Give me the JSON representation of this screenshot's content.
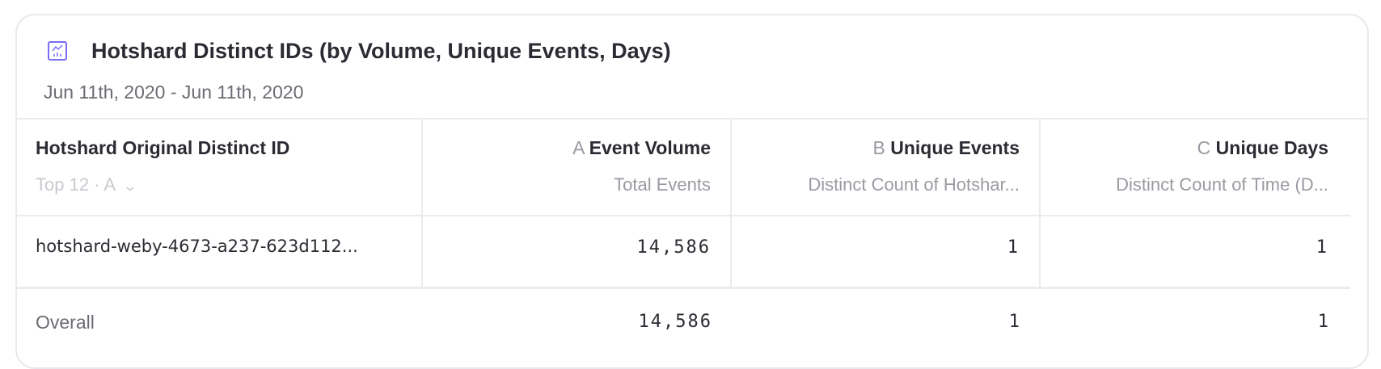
{
  "report": {
    "icon": "line-chart-icon",
    "title": "Hotshard Distinct IDs (by Volume, Unique Events, Days)",
    "date_range": "Jun 11th, 2020 - Jun 11th, 2020",
    "accent_color": "#7b6cf6"
  },
  "table": {
    "group_column": {
      "label": "Hotshard Original Distinct ID",
      "selector": "Top 12 · A",
      "selector_icon": "chevron-down-icon"
    },
    "columns": [
      {
        "letter": "A",
        "label": "Event Volume",
        "subtitle": "Total Events"
      },
      {
        "letter": "B",
        "label": "Unique Events",
        "subtitle": "Distinct Count of Hotshar..."
      },
      {
        "letter": "C",
        "label": "Unique Days",
        "subtitle": "Distinct Count of Time (D..."
      }
    ],
    "rows": [
      {
        "id": "hotshard-weby-4673-a237-623d112...",
        "values": [
          "14,586",
          "1",
          "1"
        ]
      }
    ],
    "overall": {
      "label": "Overall",
      "values": [
        "14,586",
        "1",
        "1"
      ]
    }
  }
}
